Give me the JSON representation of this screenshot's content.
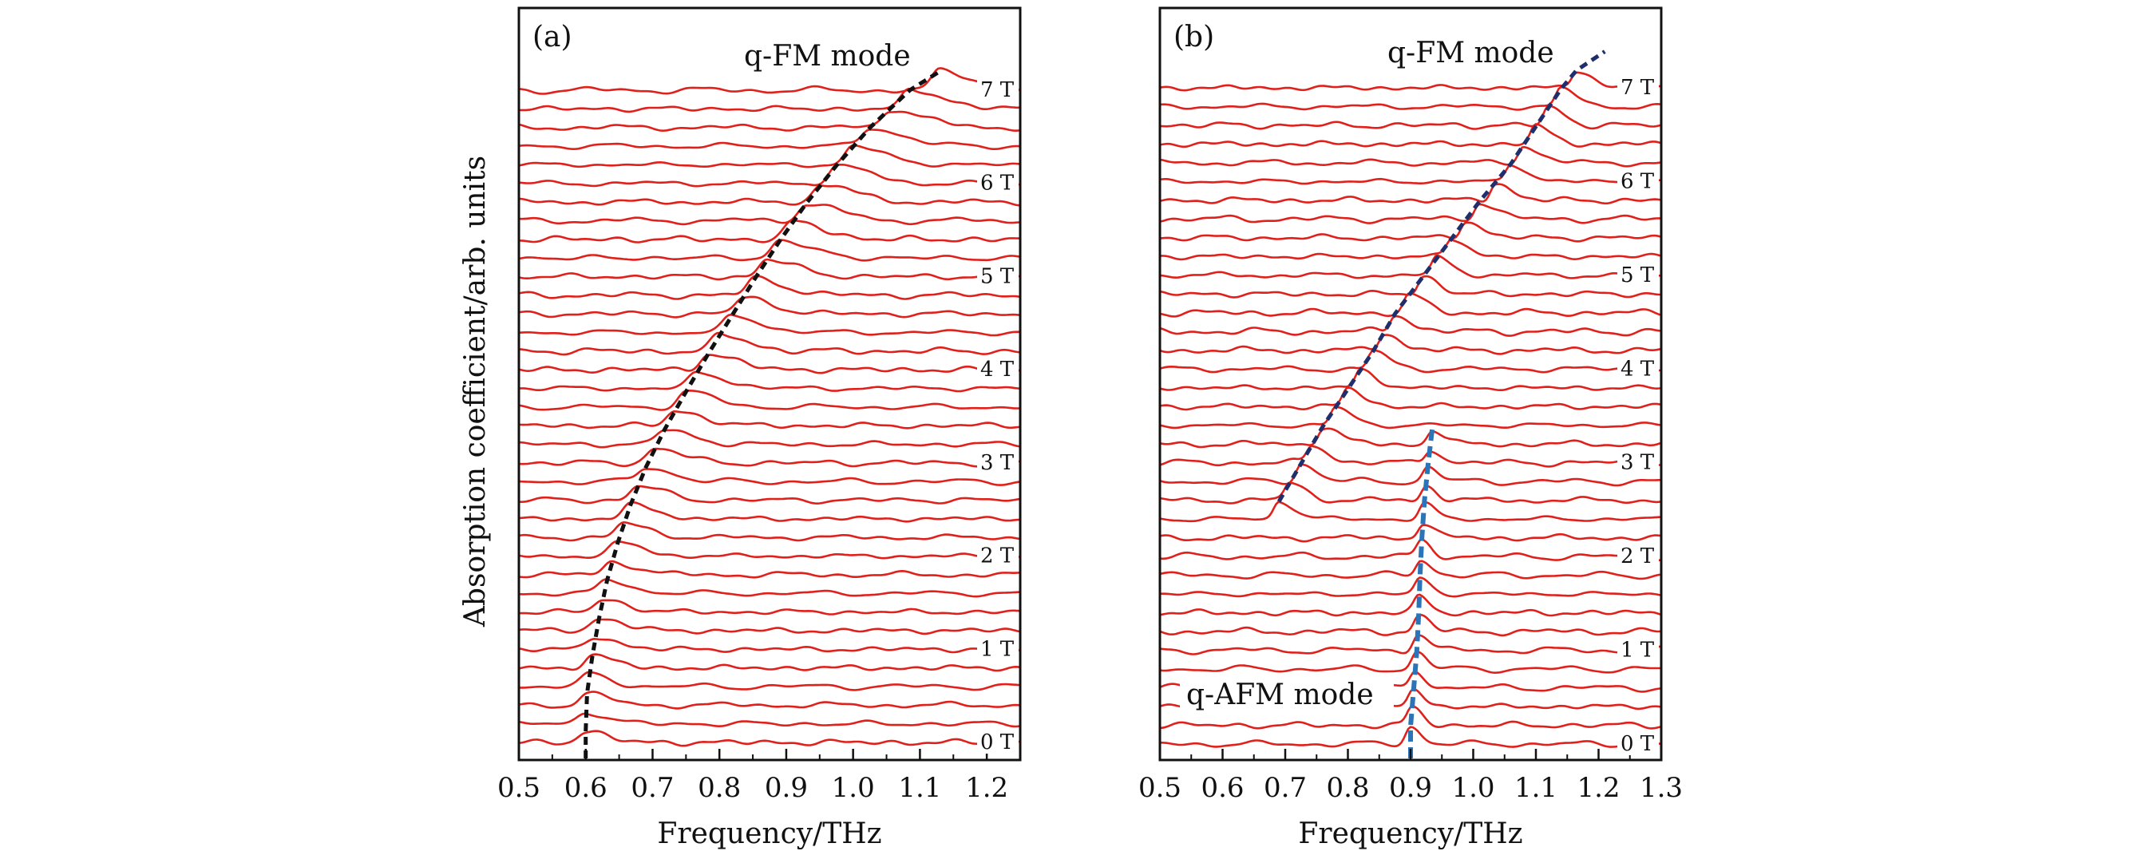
{
  "figure": {
    "ylabel": "Absorption coefficient/arb. units",
    "colors": {
      "curve": "#e0201b",
      "fm_guide": "#111111",
      "fm_guide_b": "#1f2f6b",
      "afm_guide": "#2b74b8",
      "afm_label": "#2b74b8",
      "frame": "#111111"
    }
  },
  "chart_data": [
    {
      "type": "line",
      "panel_label": "(a)",
      "xlabel": "Frequency/THz",
      "xlim": [
        0.5,
        1.25
      ],
      "xticks": [
        0.5,
        0.6,
        0.7,
        0.8,
        0.9,
        1.0,
        1.1,
        1.2
      ],
      "xtick_labels": [
        "0.5",
        "0.6",
        "0.7",
        "0.8",
        "0.9",
        "1.0",
        "1.1",
        "1.2"
      ],
      "grid": false,
      "n_traces": 36,
      "field_step_T": 0.2,
      "field_labels": [
        "0 T",
        "1 T",
        "2 T",
        "3 T",
        "4 T",
        "5 T",
        "6 T",
        "7 T"
      ],
      "annotations": [
        {
          "text": "q-FM mode"
        }
      ],
      "modes": [
        {
          "name": "q-FM mode",
          "field_T": [
            0.0,
            0.4,
            0.8,
            1.2,
            1.6,
            2.0,
            2.4,
            2.8,
            3.2,
            3.6,
            4.0,
            4.4,
            4.8,
            5.2,
            5.6,
            6.0,
            6.4,
            6.8,
            7.0
          ],
          "frequency_THz": [
            0.6,
            0.602,
            0.61,
            0.62,
            0.632,
            0.648,
            0.667,
            0.69,
            0.718,
            0.75,
            0.783,
            0.818,
            0.853,
            0.89,
            0.93,
            0.975,
            1.025,
            1.085,
            1.13
          ]
        }
      ]
    },
    {
      "type": "line",
      "panel_label": "(b)",
      "xlabel": "Frequency/THz",
      "xlim": [
        0.5,
        1.3
      ],
      "xticks": [
        0.5,
        0.6,
        0.7,
        0.8,
        0.9,
        1.0,
        1.1,
        1.2,
        1.3
      ],
      "xtick_labels": [
        "0.5",
        "0.6",
        "0.7",
        "0.8",
        "0.9",
        "1.0",
        "1.1",
        "1.2",
        "1.3"
      ],
      "grid": false,
      "n_traces": 36,
      "field_step_T": 0.2,
      "field_labels": [
        "0 T",
        "1 T",
        "2 T",
        "3 T",
        "4 T",
        "5 T",
        "6 T",
        "7 T"
      ],
      "annotations": [
        {
          "text": "q-FM mode"
        },
        {
          "text": "q-AFM mode"
        }
      ],
      "modes": [
        {
          "name": "q-FM mode",
          "field_T": [
            2.4,
            2.8,
            3.2,
            3.6,
            4.0,
            4.4,
            4.8,
            5.2,
            5.6,
            6.0,
            6.4,
            6.8,
            7.0,
            7.2
          ],
          "frequency_THz": [
            0.69,
            0.725,
            0.76,
            0.8,
            0.84,
            0.875,
            0.92,
            0.965,
            1.01,
            1.06,
            1.1,
            1.14,
            1.165,
            1.21
          ]
        },
        {
          "name": "q-AFM mode",
          "field_T": [
            0.0,
            0.4,
            0.8,
            1.2,
            1.6,
            2.0,
            2.4,
            2.8,
            3.2
          ],
          "frequency_THz": [
            0.9,
            0.905,
            0.91,
            0.913,
            0.915,
            0.918,
            0.922,
            0.928,
            0.935
          ]
        }
      ]
    }
  ]
}
